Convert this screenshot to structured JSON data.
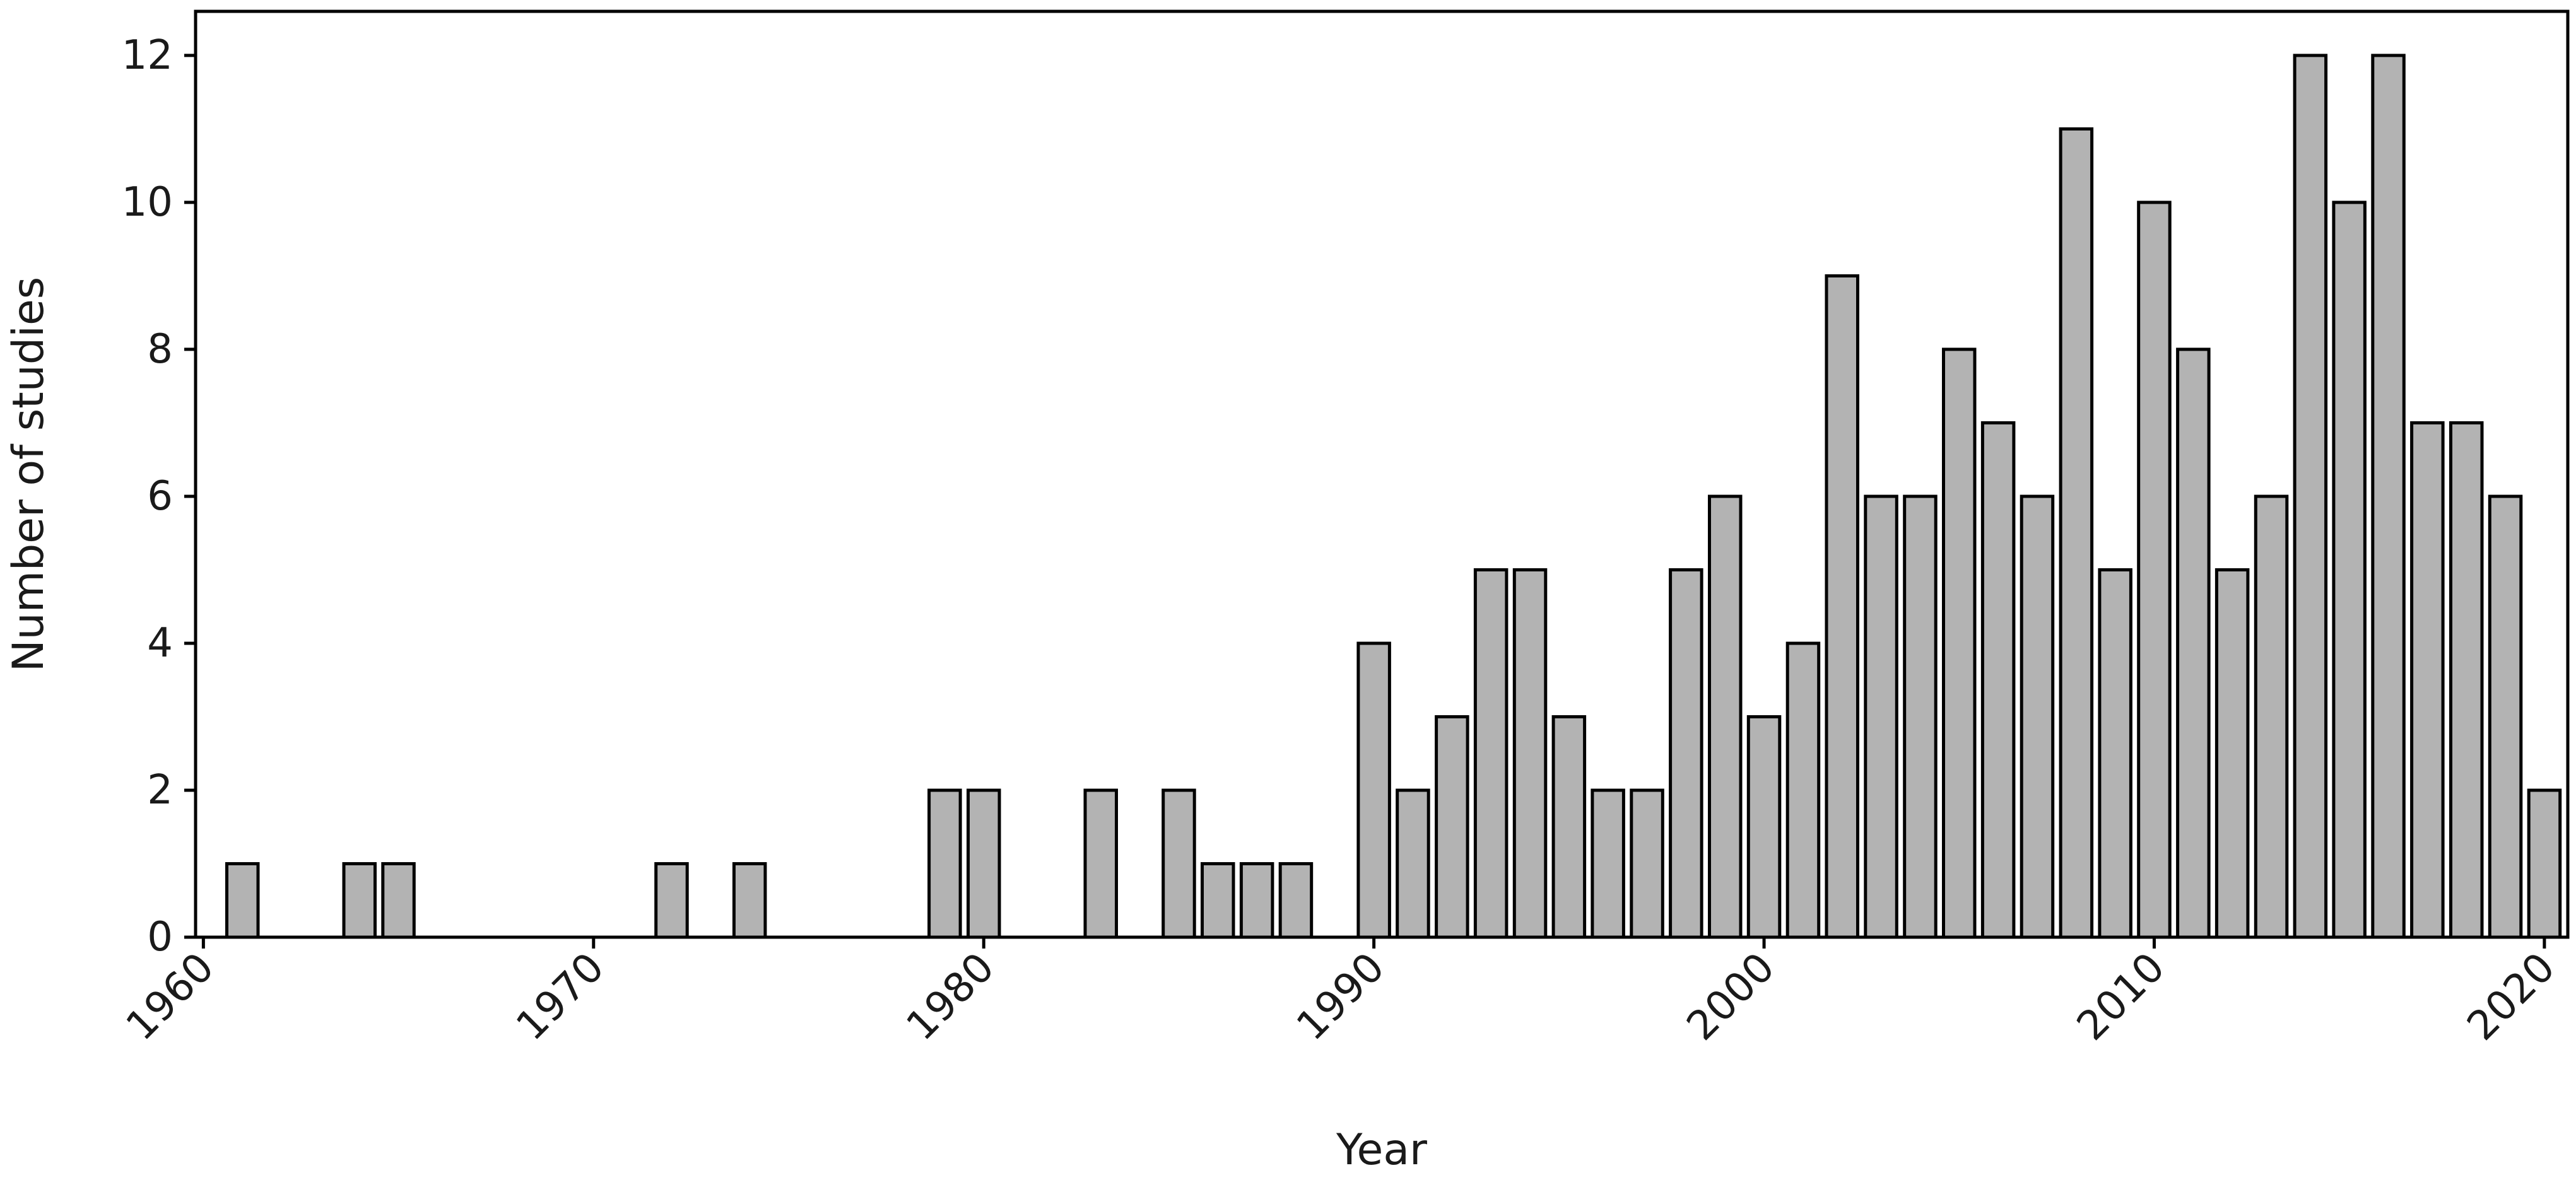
{
  "chart_data": {
    "type": "bar",
    "title": "",
    "xlabel": "Year",
    "ylabel": "Number of studies",
    "xlim": [
      1959.8,
      2020.6
    ],
    "ylim": [
      0,
      12.6
    ],
    "x_ticks": [
      1960,
      1970,
      1980,
      1990,
      2000,
      2010,
      2020
    ],
    "y_ticks": [
      0,
      2,
      4,
      6,
      8,
      10,
      12
    ],
    "grid": false,
    "legend": "none",
    "bar_color": "#b3b3b3",
    "edge_color": "#000000",
    "x": [
      1960,
      1961,
      1964,
      1965,
      1972,
      1974,
      1979,
      1980,
      1983,
      1985,
      1986,
      1987,
      1988,
      1990,
      1991,
      1992,
      1993,
      1994,
      1995,
      1996,
      1997,
      1998,
      1999,
      2000,
      2001,
      2002,
      2003,
      2004,
      2005,
      2006,
      2007,
      2008,
      2009,
      2010,
      2011,
      2012,
      2013,
      2014,
      2015,
      2016,
      2017,
      2018,
      2019,
      2020
    ],
    "values": [
      0,
      1,
      1,
      1,
      1,
      1,
      2,
      2,
      2,
      2,
      1,
      1,
      1,
      4,
      2,
      3,
      5,
      5,
      3,
      2,
      2,
      5,
      6,
      3,
      4,
      9,
      6,
      6,
      8,
      7,
      6,
      11,
      5,
      10,
      8,
      5,
      6,
      12,
      10,
      12,
      7,
      7,
      6,
      2
    ]
  }
}
